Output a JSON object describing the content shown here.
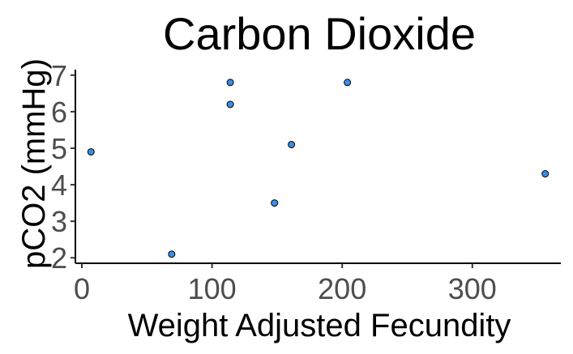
{
  "chart_data": {
    "type": "scatter",
    "title": "Carbon Dioxide",
    "xlabel": "Weight Adjusted Fecundity",
    "ylabel": "pCO2 (mmHg)",
    "xlim": [
      -5,
      368
    ],
    "ylim": [
      1.85,
      7.15
    ],
    "x_ticks": [
      0,
      100,
      200,
      300
    ],
    "y_ticks": [
      2,
      3,
      4,
      5,
      6,
      7
    ],
    "grid": false,
    "legend": "none",
    "point_color": "#3a8ee6",
    "points": [
      {
        "x": 7,
        "y": 4.9
      },
      {
        "x": 69,
        "y": 2.1
      },
      {
        "x": 114,
        "y": 6.8
      },
      {
        "x": 114,
        "y": 6.2
      },
      {
        "x": 148,
        "y": 3.5
      },
      {
        "x": 161,
        "y": 5.1
      },
      {
        "x": 204,
        "y": 6.8
      },
      {
        "x": 356,
        "y": 4.3
      }
    ]
  }
}
